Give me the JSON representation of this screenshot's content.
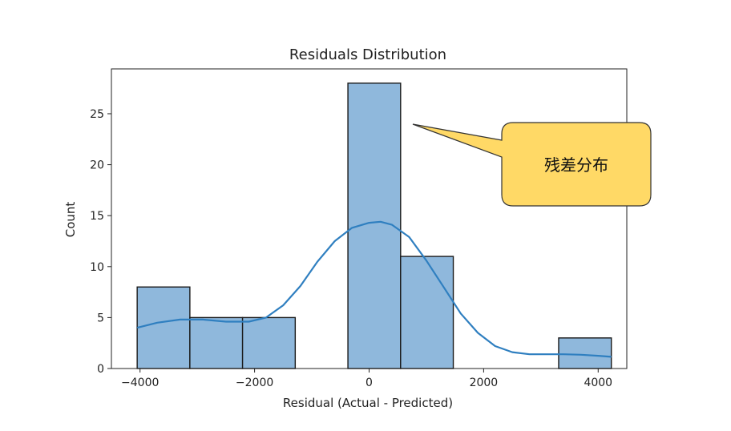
{
  "chart_data": {
    "type": "bar",
    "title": "Residuals Distribution",
    "xlabel": "Residual (Actual - Predicted)",
    "ylabel": "Count",
    "xlim": [
      -4500,
      4500
    ],
    "ylim": [
      0,
      29.4
    ],
    "xticks": [
      -4000,
      -2000,
      0,
      2000,
      4000
    ],
    "xtick_labels": [
      "−4000",
      "−2000",
      "0",
      "2000",
      "4000"
    ],
    "yticks": [
      0,
      5,
      10,
      15,
      20,
      25
    ],
    "ytick_labels": [
      "0",
      "5",
      "10",
      "15",
      "20",
      "25"
    ],
    "bins": [
      {
        "start": -4050,
        "end": -3130,
        "count": 8
      },
      {
        "start": -3130,
        "end": -2210,
        "count": 5
      },
      {
        "start": -2210,
        "end": -1290,
        "count": 5
      },
      {
        "start": -1290,
        "end": -370,
        "count": 0
      },
      {
        "start": -370,
        "end": 550,
        "count": 28
      },
      {
        "start": 550,
        "end": 1470,
        "count": 11
      },
      {
        "start": 1470,
        "end": 2390,
        "count": 0
      },
      {
        "start": 2390,
        "end": 3310,
        "count": 0
      },
      {
        "start": 3310,
        "end": 4230,
        "count": 3
      }
    ],
    "kde": {
      "x": [
        -4050,
        -3700,
        -3300,
        -2900,
        -2500,
        -2100,
        -1800,
        -1500,
        -1200,
        -900,
        -600,
        -300,
        0,
        200,
        400,
        700,
        1000,
        1300,
        1600,
        1900,
        2200,
        2500,
        2800,
        3100,
        3400,
        3700,
        4000,
        4230
      ],
      "y": [
        4.0,
        4.5,
        4.8,
        4.8,
        4.6,
        4.6,
        5.0,
        6.2,
        8.1,
        10.5,
        12.5,
        13.8,
        14.3,
        14.4,
        14.1,
        12.9,
        10.6,
        8.0,
        5.4,
        3.5,
        2.2,
        1.6,
        1.4,
        1.4,
        1.4,
        1.35,
        1.25,
        1.15
      ]
    },
    "colors": {
      "bar_fill": "#8fb8dc",
      "bar_stroke": "#1a1a1a",
      "kde": "#2f7fc0"
    },
    "grid": false
  },
  "annotation": {
    "text": "残差分布",
    "fill": "#ffd966",
    "stroke": "#333333"
  }
}
